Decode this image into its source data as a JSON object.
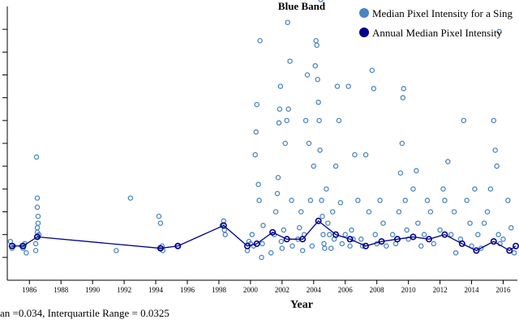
{
  "chart_data": {
    "type": "scatter",
    "title": "Blue Band",
    "xlabel": "Year",
    "ylabel": "",
    "footnote": "an =0.034, Interquartile Range = 0.0325",
    "xlim": [
      1984.6,
      2016.9
    ],
    "ylim": [
      0.01,
      0.13
    ],
    "x_ticks": [
      "1986",
      "1988",
      "1990",
      "1992",
      "1994",
      "1996",
      "1998",
      "2000",
      "2002",
      "2004",
      "2006",
      "2008",
      "2010",
      "2012",
      "2014",
      "2016"
    ],
    "colors": {
      "scene": "#4a86c0",
      "annual": "#00008b"
    },
    "legend_position": "top-right",
    "series": [
      {
        "name": "Median Pixel Intensity for a Sing",
        "kind": "scatter",
        "points": [
          [
            1984.8,
            0.027
          ],
          [
            1984.9,
            0.024
          ],
          [
            1985.0,
            0.025
          ],
          [
            1985.5,
            0.025
          ],
          [
            1985.6,
            0.024
          ],
          [
            1985.7,
            0.026
          ],
          [
            1985.8,
            0.022
          ],
          [
            1986.4,
            0.026
          ],
          [
            1986.45,
            0.029
          ],
          [
            1986.5,
            0.031
          ],
          [
            1986.5,
            0.033
          ],
          [
            1986.55,
            0.035
          ],
          [
            1986.55,
            0.038
          ],
          [
            1986.5,
            0.042
          ],
          [
            1986.5,
            0.046
          ],
          [
            1986.6,
            0.03
          ],
          [
            1986.4,
            0.023
          ],
          [
            1986.45,
            0.064
          ],
          [
            1991.5,
            0.023
          ],
          [
            1992.4,
            0.046
          ],
          [
            1994.2,
            0.038
          ],
          [
            1994.3,
            0.035
          ],
          [
            1994.35,
            0.024
          ],
          [
            1994.4,
            0.025
          ],
          [
            1994.45,
            0.023
          ],
          [
            1995.4,
            0.025
          ],
          [
            1998.2,
            0.034
          ],
          [
            1998.3,
            0.036
          ],
          [
            1998.35,
            0.032
          ],
          [
            1998.4,
            0.03
          ],
          [
            1999.8,
            0.023
          ],
          [
            1999.9,
            0.027
          ],
          [
            2000.0,
            0.026
          ],
          [
            2000.1,
            0.03
          ],
          [
            2000.2,
            0.025
          ],
          [
            2000.3,
            0.065
          ],
          [
            2000.35,
            0.075
          ],
          [
            2000.4,
            0.087
          ],
          [
            2000.5,
            0.052
          ],
          [
            2000.55,
            0.045
          ],
          [
            2000.6,
            0.115
          ],
          [
            2000.7,
            0.02
          ],
          [
            2000.75,
            0.026
          ],
          [
            2000.8,
            0.034
          ],
          [
            2001.3,
            0.022
          ],
          [
            2001.5,
            0.03
          ],
          [
            2001.6,
            0.04
          ],
          [
            2001.7,
            0.048
          ],
          [
            2001.75,
            0.055
          ],
          [
            2001.8,
            0.079
          ],
          [
            2001.85,
            0.085
          ],
          [
            2001.9,
            0.095
          ],
          [
            2001.95,
            0.027
          ],
          [
            2002.0,
            0.024
          ],
          [
            2002.1,
            0.032
          ],
          [
            2002.2,
            0.07
          ],
          [
            2002.3,
            0.08
          ],
          [
            2002.35,
            0.123
          ],
          [
            2002.4,
            0.085
          ],
          [
            2002.5,
            0.106
          ],
          [
            2002.6,
            0.045
          ],
          [
            2002.65,
            0.025
          ],
          [
            2003.0,
            0.028
          ],
          [
            2003.1,
            0.033
          ],
          [
            2003.2,
            0.04
          ],
          [
            2003.3,
            0.023
          ],
          [
            2003.4,
            0.03
          ],
          [
            2003.5,
            0.08
          ],
          [
            2003.6,
            0.1
          ],
          [
            2003.7,
            0.07
          ],
          [
            2003.8,
            0.045
          ],
          [
            2003.9,
            0.025
          ],
          [
            2004.0,
            0.06
          ],
          [
            2004.1,
            0.104
          ],
          [
            2004.15,
            0.115
          ],
          [
            2004.2,
            0.113
          ],
          [
            2004.25,
            0.098
          ],
          [
            2004.3,
            0.088
          ],
          [
            2004.35,
            0.08
          ],
          [
            2004.4,
            0.067
          ],
          [
            2004.45,
            0.133
          ],
          [
            2004.5,
            0.045
          ],
          [
            2004.55,
            0.038
          ],
          [
            2004.6,
            0.03
          ],
          [
            2004.65,
            0.026
          ],
          [
            2004.7,
            0.024
          ],
          [
            2004.8,
            0.05
          ],
          [
            2004.9,
            0.035
          ],
          [
            2005.0,
            0.03
          ],
          [
            2005.1,
            0.024
          ],
          [
            2005.2,
            0.04
          ],
          [
            2005.3,
            0.028
          ],
          [
            2005.4,
            0.06
          ],
          [
            2005.5,
            0.095
          ],
          [
            2005.6,
            0.08
          ],
          [
            2005.7,
            0.044
          ],
          [
            2005.8,
            0.026
          ],
          [
            2006.0,
            0.03
          ],
          [
            2006.2,
            0.095
          ],
          [
            2006.3,
            0.025
          ],
          [
            2006.4,
            0.032
          ],
          [
            2006.5,
            0.028
          ],
          [
            2006.6,
            0.065
          ],
          [
            2006.8,
            0.045
          ],
          [
            2007.0,
            0.028
          ],
          [
            2007.1,
            0.025
          ],
          [
            2007.3,
            0.065
          ],
          [
            2007.5,
            0.04
          ],
          [
            2007.7,
            0.102
          ],
          [
            2007.8,
            0.094
          ],
          [
            2007.9,
            0.03
          ],
          [
            2008.0,
            0.026
          ],
          [
            2008.2,
            0.045
          ],
          [
            2008.4,
            0.035
          ],
          [
            2008.6,
            0.025
          ],
          [
            2009.0,
            0.03
          ],
          [
            2009.2,
            0.026
          ],
          [
            2009.4,
            0.04
          ],
          [
            2009.5,
            0.057
          ],
          [
            2009.6,
            0.07
          ],
          [
            2009.65,
            0.09
          ],
          [
            2009.7,
            0.094
          ],
          [
            2009.8,
            0.045
          ],
          [
            2009.9,
            0.032
          ],
          [
            2010.0,
            0.028
          ],
          [
            2010.3,
            0.05
          ],
          [
            2010.5,
            0.058
          ],
          [
            2010.6,
            0.035
          ],
          [
            2010.8,
            0.025
          ],
          [
            2011.0,
            0.03
          ],
          [
            2011.2,
            0.045
          ],
          [
            2011.4,
            0.04
          ],
          [
            2011.6,
            0.026
          ],
          [
            2012.0,
            0.032
          ],
          [
            2012.2,
            0.05
          ],
          [
            2012.3,
            0.045
          ],
          [
            2012.5,
            0.062
          ],
          [
            2012.7,
            0.03
          ],
          [
            2012.9,
            0.04
          ],
          [
            2013.0,
            0.022
          ],
          [
            2013.3,
            0.028
          ],
          [
            2013.5,
            0.08
          ],
          [
            2013.7,
            0.045
          ],
          [
            2013.9,
            0.035
          ],
          [
            2014.0,
            0.025
          ],
          [
            2014.2,
            0.05
          ],
          [
            2014.4,
            0.03
          ],
          [
            2014.6,
            0.024
          ],
          [
            2014.8,
            0.035
          ],
          [
            2015.0,
            0.04
          ],
          [
            2015.2,
            0.05
          ],
          [
            2015.4,
            0.08
          ],
          [
            2015.5,
            0.067
          ],
          [
            2015.6,
            0.06
          ],
          [
            2015.7,
            0.03
          ],
          [
            2015.75,
            0.119
          ],
          [
            2015.8,
            0.026
          ],
          [
            2016.0,
            0.028
          ],
          [
            2016.3,
            0.045
          ],
          [
            2016.5,
            0.033
          ],
          [
            2016.7,
            0.022
          ]
        ]
      },
      {
        "name": "Annual Median Pixel Intensity",
        "kind": "line",
        "points": [
          [
            1984.9,
            0.025
          ],
          [
            1985.6,
            0.025
          ],
          [
            1986.5,
            0.029
          ],
          [
            1994.3,
            0.024
          ],
          [
            1995.4,
            0.025
          ],
          [
            1998.3,
            0.034
          ],
          [
            1999.8,
            0.025
          ],
          [
            2000.4,
            0.026
          ],
          [
            2001.4,
            0.031
          ],
          [
            2002.3,
            0.028
          ],
          [
            2003.3,
            0.028
          ],
          [
            2004.3,
            0.036
          ],
          [
            2005.4,
            0.03
          ],
          [
            2006.3,
            0.028
          ],
          [
            2007.3,
            0.025
          ],
          [
            2008.3,
            0.027
          ],
          [
            2009.3,
            0.028
          ],
          [
            2010.3,
            0.029
          ],
          [
            2011.3,
            0.028
          ],
          [
            2012.3,
            0.03
          ],
          [
            2013.4,
            0.026
          ],
          [
            2014.3,
            0.023
          ],
          [
            2015.4,
            0.027
          ],
          [
            2016.4,
            0.023
          ],
          [
            2016.8,
            0.025
          ]
        ]
      }
    ]
  }
}
